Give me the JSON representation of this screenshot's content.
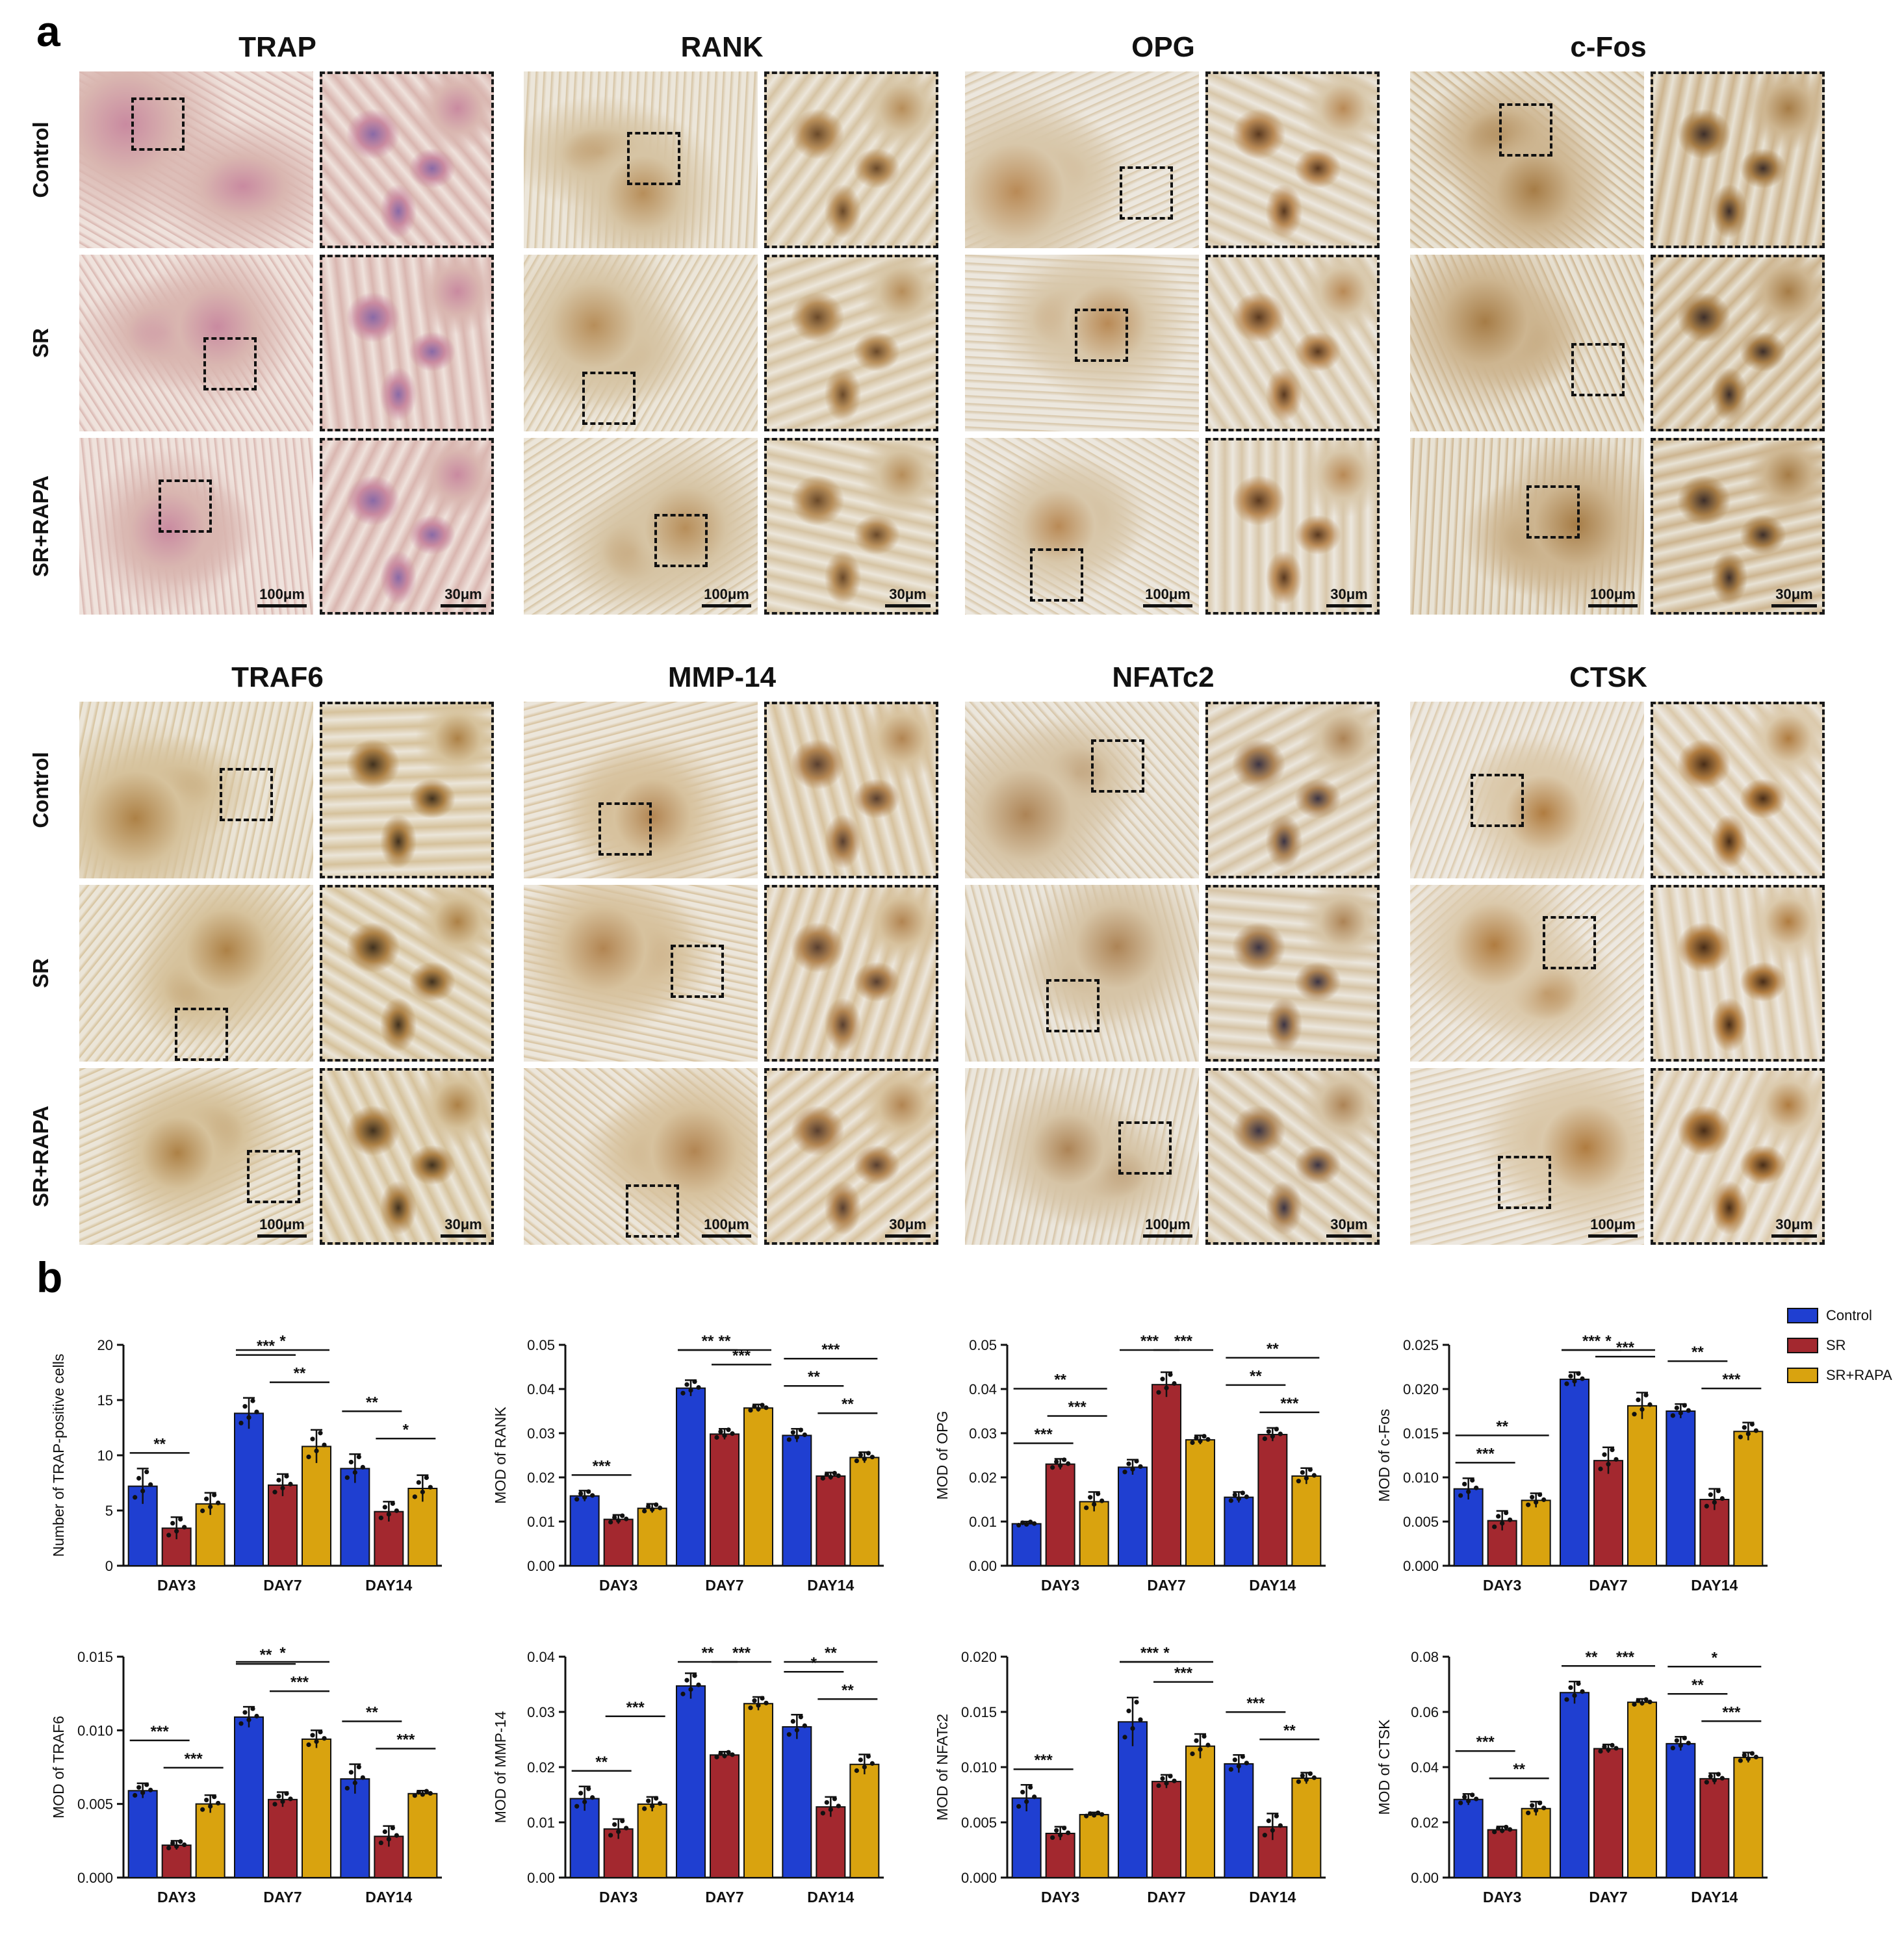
{
  "panel_a": {
    "letter": "a"
  },
  "panel_b": {
    "letter": "b"
  },
  "histology": {
    "stains": [
      "TRAP",
      "RANK",
      "OPG",
      "c-Fos",
      "TRAF6",
      "MMP-14",
      "NFATc2",
      "CTSK"
    ],
    "groups": [
      "Control",
      "SR",
      "SR+RAPA"
    ],
    "scale_overview": "100μm",
    "scale_zoom": "30μm"
  },
  "legend": {
    "items": [
      {
        "label": "Control",
        "color": "#1f3fd1"
      },
      {
        "label": "SR",
        "color": "#a3282f"
      },
      {
        "label": "SR+RAPA",
        "color": "#d9a30f"
      }
    ]
  },
  "chart_data": [
    {
      "type": "bar",
      "ylabel": "Number of TRAP-positive cells",
      "ylim": [
        0,
        20
      ],
      "yticks": [
        "0",
        "5",
        "10",
        "15",
        "20"
      ],
      "categories": [
        "DAY3",
        "DAY7",
        "DAY14"
      ],
      "series": [
        {
          "name": "Control",
          "values": [
            7.2,
            13.8,
            8.8
          ],
          "err": [
            1.6,
            1.4,
            1.3
          ]
        },
        {
          "name": "SR",
          "values": [
            3.4,
            7.3,
            4.9
          ],
          "err": [
            1.0,
            1.0,
            0.9
          ]
        },
        {
          "name": "SR+RAPA",
          "values": [
            5.6,
            10.8,
            7.0
          ],
          "err": [
            1.0,
            1.5,
            1.2
          ]
        }
      ],
      "significance": [
        {
          "cat": 0,
          "from": 0,
          "to": 1,
          "label": "**",
          "level": 0
        },
        {
          "cat": 1,
          "from": 0,
          "to": 2,
          "label": "*",
          "level": 2
        },
        {
          "cat": 1,
          "from": 0,
          "to": 1,
          "label": "***",
          "level": 1
        },
        {
          "cat": 1,
          "from": 1,
          "to": 2,
          "label": "**",
          "level": 0
        },
        {
          "cat": 2,
          "from": 0,
          "to": 1,
          "label": "**",
          "level": 1
        },
        {
          "cat": 2,
          "from": 1,
          "to": 2,
          "label": "*",
          "level": 0
        }
      ]
    },
    {
      "type": "bar",
      "ylabel": "MOD of RANK",
      "ylim": [
        0,
        0.05
      ],
      "yticks": [
        "0.00",
        "0.01",
        "0.02",
        "0.03",
        "0.04",
        "0.05"
      ],
      "categories": [
        "DAY3",
        "DAY7",
        "DAY14"
      ],
      "series": [
        {
          "name": "Control",
          "values": [
            0.0158,
            0.0402,
            0.0295
          ],
          "err": [
            0.0012,
            0.0018,
            0.0015
          ]
        },
        {
          "name": "SR",
          "values": [
            0.0105,
            0.0298,
            0.0203
          ],
          "err": [
            0.001,
            0.0012,
            0.0008
          ]
        },
        {
          "name": "SR+RAPA",
          "values": [
            0.013,
            0.0357,
            0.0245
          ],
          "err": [
            0.001,
            0.0008,
            0.0012
          ]
        }
      ],
      "significance": [
        {
          "cat": 0,
          "from": 0,
          "to": 1,
          "label": "***",
          "level": 0
        },
        {
          "cat": 1,
          "from": 0,
          "to": 2,
          "label": "**",
          "level": 2
        },
        {
          "cat": 1,
          "from": 0,
          "to": 1,
          "label": "**",
          "level": 1
        },
        {
          "cat": 1,
          "from": 1,
          "to": 2,
          "label": "***",
          "level": 0
        },
        {
          "cat": 2,
          "from": 0,
          "to": 2,
          "label": "***",
          "level": 2
        },
        {
          "cat": 2,
          "from": 0,
          "to": 1,
          "label": "**",
          "level": 1
        },
        {
          "cat": 2,
          "from": 1,
          "to": 2,
          "label": "**",
          "level": 0
        }
      ]
    },
    {
      "type": "bar",
      "ylabel": "MOD of OPG",
      "ylim": [
        0,
        0.05
      ],
      "yticks": [
        "0.00",
        "0.01",
        "0.02",
        "0.03",
        "0.04",
        "0.05"
      ],
      "categories": [
        "DAY3",
        "DAY7",
        "DAY14"
      ],
      "series": [
        {
          "name": "Control",
          "values": [
            0.0095,
            0.0223,
            0.0155
          ],
          "err": [
            0.0005,
            0.0017,
            0.0012
          ]
        },
        {
          "name": "SR",
          "values": [
            0.023,
            0.041,
            0.0297
          ],
          "err": [
            0.0012,
            0.0028,
            0.0015
          ]
        },
        {
          "name": "SR+RAPA",
          "values": [
            0.0145,
            0.0285,
            0.0203
          ],
          "err": [
            0.0022,
            0.001,
            0.0018
          ]
        }
      ],
      "significance": [
        {
          "cat": 0,
          "from": 0,
          "to": 2,
          "label": "**",
          "level": 2
        },
        {
          "cat": 0,
          "from": 0,
          "to": 1,
          "label": "***",
          "level": 0
        },
        {
          "cat": 0,
          "from": 1,
          "to": 2,
          "label": "***",
          "level": 1
        },
        {
          "cat": 1,
          "from": 0,
          "to": 1,
          "label": "***",
          "level": 2
        },
        {
          "cat": 1,
          "from": 1,
          "to": 2,
          "label": "***",
          "level": 2
        },
        {
          "cat": 2,
          "from": 0,
          "to": 2,
          "label": "**",
          "level": 2
        },
        {
          "cat": 2,
          "from": 0,
          "to": 1,
          "label": "**",
          "level": 1
        },
        {
          "cat": 2,
          "from": 1,
          "to": 2,
          "label": "***",
          "level": 0
        }
      ]
    },
    {
      "type": "bar",
      "ylabel": "MOD of c-Fos",
      "ylim": [
        0,
        0.025
      ],
      "yticks": [
        "0.000",
        "0.005",
        "0.010",
        "0.015",
        "0.020",
        "0.025"
      ],
      "categories": [
        "DAY3",
        "DAY7",
        "DAY14"
      ],
      "series": [
        {
          "name": "Control",
          "values": [
            0.0087,
            0.0211,
            0.0175
          ],
          "err": [
            0.0012,
            0.0008,
            0.0008
          ]
        },
        {
          "name": "SR",
          "values": [
            0.0051,
            0.0119,
            0.0075
          ],
          "err": [
            0.0011,
            0.0015,
            0.0012
          ]
        },
        {
          "name": "SR+RAPA",
          "values": [
            0.0074,
            0.0181,
            0.0152
          ],
          "err": [
            0.0008,
            0.0015,
            0.001
          ]
        }
      ],
      "significance": [
        {
          "cat": 0,
          "from": 0,
          "to": 2,
          "label": "**",
          "level": 1
        },
        {
          "cat": 0,
          "from": 0,
          "to": 1,
          "label": "***",
          "level": 0
        },
        {
          "cat": 1,
          "from": 0,
          "to": 2,
          "label": "*",
          "level": 2
        },
        {
          "cat": 1,
          "from": 0,
          "to": 1,
          "label": "***",
          "level": 1
        },
        {
          "cat": 1,
          "from": 1,
          "to": 2,
          "label": "***",
          "level": 0
        },
        {
          "cat": 2,
          "from": 0,
          "to": 1,
          "label": "**",
          "level": 1
        },
        {
          "cat": 2,
          "from": 1,
          "to": 2,
          "label": "***",
          "level": 0
        }
      ]
    },
    {
      "type": "bar",
      "ylabel": "MOD of TRAF6",
      "ylim": [
        0,
        0.015
      ],
      "yticks": [
        "0.000",
        "0.005",
        "0.010",
        "0.015"
      ],
      "categories": [
        "DAY3",
        "DAY7",
        "DAY14"
      ],
      "series": [
        {
          "name": "Control",
          "values": [
            0.0059,
            0.0109,
            0.0067
          ],
          "err": [
            0.0005,
            0.0007,
            0.001
          ]
        },
        {
          "name": "SR",
          "values": [
            0.0022,
            0.0053,
            0.0028
          ],
          "err": [
            0.0003,
            0.0005,
            0.0007
          ]
        },
        {
          "name": "SR+RAPA",
          "values": [
            0.005,
            0.0094,
            0.0057
          ],
          "err": [
            0.0006,
            0.0006,
            0.0002
          ]
        }
      ],
      "significance": [
        {
          "cat": 0,
          "from": 0,
          "to": 1,
          "label": "***",
          "level": 1
        },
        {
          "cat": 0,
          "from": 1,
          "to": 2,
          "label": "***",
          "level": 0
        },
        {
          "cat": 1,
          "from": 0,
          "to": 2,
          "label": "*",
          "level": 2
        },
        {
          "cat": 1,
          "from": 0,
          "to": 1,
          "label": "**",
          "level": 1
        },
        {
          "cat": 1,
          "from": 1,
          "to": 2,
          "label": "***",
          "level": 0
        },
        {
          "cat": 2,
          "from": 0,
          "to": 1,
          "label": "**",
          "level": 1
        },
        {
          "cat": 2,
          "from": 1,
          "to": 2,
          "label": "***",
          "level": 0
        }
      ]
    },
    {
      "type": "bar",
      "ylabel": "MOD of MMP-14",
      "ylim": [
        0,
        0.04
      ],
      "yticks": [
        "0.00",
        "0.01",
        "0.02",
        "0.03",
        "0.04"
      ],
      "categories": [
        "DAY3",
        "DAY7",
        "DAY14"
      ],
      "series": [
        {
          "name": "Control",
          "values": [
            0.0143,
            0.0347,
            0.0273
          ],
          "err": [
            0.0022,
            0.0023,
            0.0022
          ]
        },
        {
          "name": "SR",
          "values": [
            0.0088,
            0.0222,
            0.0128
          ],
          "err": [
            0.0018,
            0.0006,
            0.0018
          ]
        },
        {
          "name": "SR+RAPA",
          "values": [
            0.0133,
            0.0315,
            0.0205
          ],
          "err": [
            0.0013,
            0.0012,
            0.0018
          ]
        }
      ],
      "significance": [
        {
          "cat": 0,
          "from": 0,
          "to": 1,
          "label": "**",
          "level": 0
        },
        {
          "cat": 0,
          "from": 1,
          "to": 2,
          "label": "***",
          "level": 2
        },
        {
          "cat": 1,
          "from": 0,
          "to": 1,
          "label": "**",
          "level": 2
        },
        {
          "cat": 1,
          "from": 1,
          "to": 2,
          "label": "***",
          "level": 2
        },
        {
          "cat": 2,
          "from": 0,
          "to": 2,
          "label": "**",
          "level": 2
        },
        {
          "cat": 2,
          "from": 0,
          "to": 1,
          "label": "*",
          "level": 1
        },
        {
          "cat": 2,
          "from": 1,
          "to": 2,
          "label": "**",
          "level": 0
        }
      ]
    },
    {
      "type": "bar",
      "ylabel": "MOD of NFATc2",
      "ylim": [
        0,
        0.02
      ],
      "yticks": [
        "0.000",
        "0.005",
        "0.010",
        "0.015",
        "0.020"
      ],
      "categories": [
        "DAY3",
        "DAY7",
        "DAY14"
      ],
      "series": [
        {
          "name": "Control",
          "values": [
            0.0072,
            0.0141,
            0.0103
          ],
          "err": [
            0.0012,
            0.0022,
            0.0008
          ]
        },
        {
          "name": "SR",
          "values": [
            0.004,
            0.0087,
            0.0046
          ],
          "err": [
            0.0006,
            0.0006,
            0.0012
          ]
        },
        {
          "name": "SR+RAPA",
          "values": [
            0.0057,
            0.0119,
            0.009
          ],
          "err": [
            0.0002,
            0.0011,
            0.0005
          ]
        }
      ],
      "significance": [
        {
          "cat": 0,
          "from": 0,
          "to": 1,
          "label": "***",
          "level": 0
        },
        {
          "cat": 1,
          "from": 0,
          "to": 2,
          "label": "*",
          "level": 2
        },
        {
          "cat": 1,
          "from": 0,
          "to": 1,
          "label": "***",
          "level": 1
        },
        {
          "cat": 1,
          "from": 1,
          "to": 2,
          "label": "***",
          "level": 0
        },
        {
          "cat": 2,
          "from": 0,
          "to": 1,
          "label": "***",
          "level": 1
        },
        {
          "cat": 2,
          "from": 1,
          "to": 2,
          "label": "**",
          "level": 0
        }
      ]
    },
    {
      "type": "bar",
      "ylabel": "MOD of CTSK",
      "ylim": [
        0,
        0.08
      ],
      "yticks": [
        "0.00",
        "0.02",
        "0.04",
        "0.06",
        "0.08"
      ],
      "categories": [
        "DAY3",
        "DAY7",
        "DAY14"
      ],
      "series": [
        {
          "name": "Control",
          "values": [
            0.0283,
            0.067,
            0.0485
          ],
          "err": [
            0.002,
            0.004,
            0.0025
          ]
        },
        {
          "name": "SR",
          "values": [
            0.0173,
            0.0467,
            0.0358
          ],
          "err": [
            0.0012,
            0.0015,
            0.002
          ]
        },
        {
          "name": "SR+RAPA",
          "values": [
            0.025,
            0.0635,
            0.0435
          ],
          "err": [
            0.0025,
            0.0012,
            0.0018
          ]
        }
      ],
      "significance": [
        {
          "cat": 0,
          "from": 0,
          "to": 1,
          "label": "***",
          "level": 1
        },
        {
          "cat": 0,
          "from": 1,
          "to": 2,
          "label": "**",
          "level": 0
        },
        {
          "cat": 1,
          "from": 0,
          "to": 1,
          "label": "**",
          "level": 0
        },
        {
          "cat": 1,
          "from": 1,
          "to": 2,
          "label": "***",
          "level": 0
        },
        {
          "cat": 2,
          "from": 0,
          "to": 2,
          "label": "*",
          "level": 2
        },
        {
          "cat": 2,
          "from": 0,
          "to": 1,
          "label": "**",
          "level": 1
        },
        {
          "cat": 2,
          "from": 1,
          "to": 2,
          "label": "***",
          "level": 0
        }
      ]
    }
  ]
}
